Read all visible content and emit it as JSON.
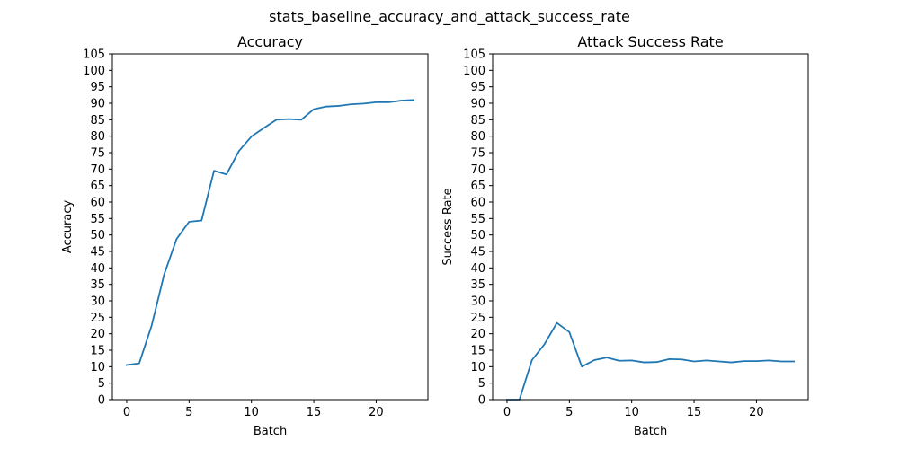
{
  "figure": {
    "suptitle": "stats_baseline_accuracy_and_attack_success_rate"
  },
  "chart_data": [
    {
      "type": "line",
      "title": "Accuracy",
      "xlabel": "Batch",
      "ylabel": "Accuracy",
      "xlim": [
        -1.15,
        24.15
      ],
      "ylim": [
        0,
        105
      ],
      "xticks": [
        0,
        5,
        10,
        15,
        20
      ],
      "yticks": [
        0,
        5,
        10,
        15,
        20,
        25,
        30,
        35,
        40,
        45,
        50,
        55,
        60,
        65,
        70,
        75,
        80,
        85,
        90,
        95,
        100,
        105
      ],
      "grid": false,
      "series": [
        {
          "color": "#1f77b4",
          "x": [
            0,
            1,
            2,
            3,
            4,
            5,
            6,
            7,
            8,
            9,
            10,
            11,
            12,
            13,
            14,
            15,
            16,
            17,
            18,
            19,
            20,
            21,
            22,
            23
          ],
          "y": [
            10.5,
            11.0,
            22.5,
            38.0,
            48.8,
            54.0,
            54.4,
            69.5,
            68.4,
            75.5,
            79.9,
            82.5,
            85.0,
            85.2,
            85.0,
            88.2,
            89.0,
            89.2,
            89.7,
            89.9,
            90.3,
            90.3,
            90.8,
            91.0
          ]
        }
      ]
    },
    {
      "type": "line",
      "title": "Attack Success Rate",
      "xlabel": "Batch",
      "ylabel": "Success Rate",
      "xlim": [
        -1.15,
        24.15
      ],
      "ylim": [
        0,
        105
      ],
      "xticks": [
        0,
        5,
        10,
        15,
        20
      ],
      "yticks": [
        0,
        5,
        10,
        15,
        20,
        25,
        30,
        35,
        40,
        45,
        50,
        55,
        60,
        65,
        70,
        75,
        80,
        85,
        90,
        95,
        100,
        105
      ],
      "grid": false,
      "series": [
        {
          "color": "#1f77b4",
          "x": [
            0,
            1,
            2,
            3,
            4,
            5,
            6,
            7,
            8,
            9,
            10,
            11,
            12,
            13,
            14,
            15,
            16,
            17,
            18,
            19,
            20,
            21,
            22,
            23
          ],
          "y": [
            0.0,
            0.0,
            12.0,
            16.8,
            23.3,
            20.5,
            10.0,
            12.0,
            12.8,
            11.8,
            11.9,
            11.3,
            11.4,
            12.3,
            12.2,
            11.6,
            11.9,
            11.6,
            11.3,
            11.7,
            11.7,
            11.9,
            11.6,
            11.6
          ]
        }
      ]
    }
  ]
}
